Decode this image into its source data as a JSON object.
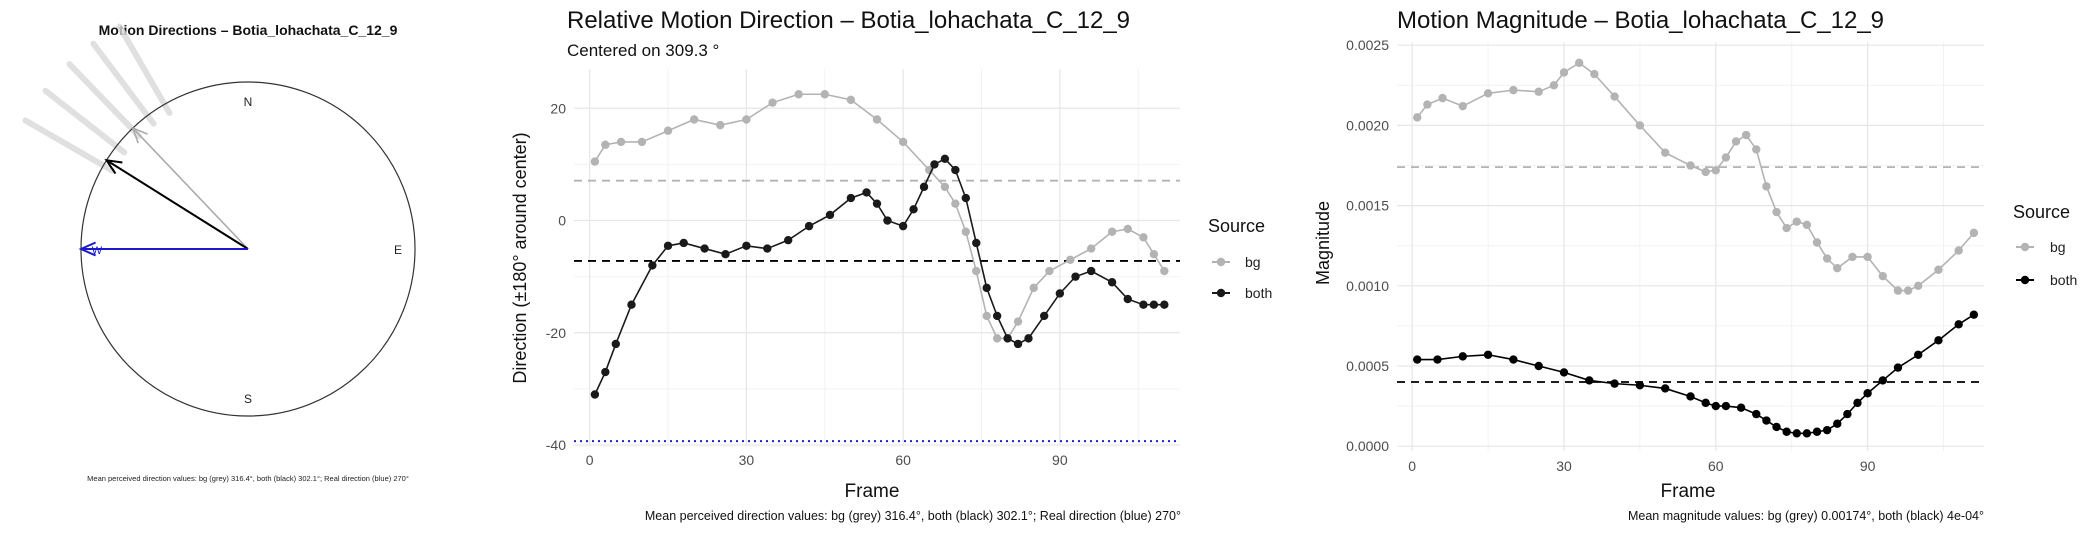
{
  "chart_data": [
    {
      "type": "compass",
      "title": "Motion Directions – Botia_lohachata_C_12_9",
      "cardinals": [
        "N",
        "E",
        "S",
        "W"
      ],
      "mean_arrows": [
        {
          "source": "bg",
          "direction_deg": 316.4,
          "color": "#aaaaaa"
        },
        {
          "source": "both",
          "direction_deg": 302.1,
          "color": "#000000"
        },
        {
          "source": "real",
          "direction_deg": 270,
          "color": "#1a1acc"
        }
      ],
      "faint_rays_deg": [
        300,
        308,
        316,
        323,
        330
      ],
      "caption": "Mean perceived direction values: bg (grey) 316.4°, both (black) 302.1°; Real direction (blue) 270°"
    },
    {
      "type": "line",
      "title": "Relative Motion Direction – Botia_lohachata_C_12_9",
      "subtitle": "Centered on  309.3 °",
      "xlabel": "Frame",
      "ylabel": "Direction (±180° around center)",
      "xlim": [
        -3,
        113
      ],
      "ylim": [
        -40,
        27
      ],
      "xticks": [
        0,
        30,
        60,
        90
      ],
      "yticks": [
        -40,
        -20,
        0,
        20
      ],
      "legend": {
        "title": "Source",
        "items": [
          "bg",
          "both"
        ],
        "placement": "right"
      },
      "series": [
        {
          "name": "bg",
          "color": "#b3b3b3",
          "x": [
            1,
            3,
            6,
            10,
            15,
            20,
            25,
            30,
            35,
            40,
            45,
            50,
            55,
            60,
            65,
            68,
            70,
            72,
            74,
            76,
            78,
            80,
            82,
            85,
            88,
            92,
            96,
            100,
            103,
            106,
            108,
            110
          ],
          "y": [
            10.5,
            13.5,
            14,
            14,
            16,
            18,
            17,
            18,
            21,
            22.5,
            22.5,
            21.5,
            18,
            14,
            9,
            6,
            3,
            -2,
            -9,
            -17,
            -21,
            -21,
            -18,
            -12,
            -9,
            -7,
            -5,
            -2,
            -1.5,
            -3,
            -6,
            -9
          ]
        },
        {
          "name": "both",
          "color": "#1a1a1a",
          "x": [
            1,
            3,
            5,
            8,
            12,
            15,
            18,
            22,
            26,
            30,
            34,
            38,
            42,
            46,
            50,
            53,
            55,
            57,
            60,
            62,
            64,
            66,
            68,
            70,
            72,
            74,
            76,
            78,
            80,
            82,
            84,
            87,
            90,
            93,
            96,
            100,
            103,
            106,
            108,
            110
          ],
          "y": [
            -31,
            -27,
            -22,
            -15,
            -8,
            -4.5,
            -4,
            -5,
            -6,
            -4.5,
            -5,
            -3.5,
            -1,
            1,
            4,
            5,
            3,
            0,
            -1,
            2,
            6,
            10,
            11,
            9,
            4,
            -4,
            -12,
            -17,
            -21,
            -22,
            -21,
            -17,
            -13,
            -10,
            -9,
            -11,
            -14,
            -15,
            -15,
            -15
          ]
        }
      ],
      "hlines": [
        {
          "label": "bg mean",
          "y": 7.1,
          "color": "#b3b3b3",
          "style": "dashed"
        },
        {
          "label": "both mean",
          "y": -7.2,
          "color": "#000000",
          "style": "dashed"
        },
        {
          "label": "real",
          "y": -39.3,
          "color": "#2222cc",
          "style": "dotted"
        }
      ],
      "caption": "Mean perceived direction values: bg (grey) 316.4°, both (black) 302.1°; Real direction (blue) 270°"
    },
    {
      "type": "line",
      "title": "Motion Magnitude – Botia_lohachata_C_12_9",
      "xlabel": "Frame",
      "ylabel": "Magnitude",
      "xlim": [
        -3,
        113
      ],
      "ylim": [
        -3e-05,
        0.00252
      ],
      "xticks": [
        0,
        30,
        60,
        90
      ],
      "yticks": [
        0.0,
        0.0005,
        0.001,
        0.0015,
        0.002,
        0.0025
      ],
      "ytick_labels": [
        "0.0000",
        "0.0005",
        "0.0010",
        "0.0015",
        "0.0020",
        "0.0025"
      ],
      "legend": {
        "title": "Source",
        "items": [
          "bg",
          "both"
        ],
        "placement": "right"
      },
      "series": [
        {
          "name": "bg",
          "color": "#b3b3b3",
          "x": [
            1,
            3,
            6,
            10,
            15,
            20,
            25,
            28,
            30,
            33,
            36,
            40,
            45,
            50,
            55,
            58,
            60,
            62,
            64,
            66,
            68,
            70,
            72,
            74,
            76,
            78,
            80,
            82,
            84,
            87,
            90,
            93,
            96,
            98,
            100,
            104,
            108,
            111
          ],
          "y": [
            0.00205,
            0.00213,
            0.00217,
            0.00212,
            0.0022,
            0.00222,
            0.00221,
            0.00225,
            0.00233,
            0.00239,
            0.00232,
            0.00218,
            0.002,
            0.00183,
            0.00175,
            0.00171,
            0.00172,
            0.0018,
            0.0019,
            0.00194,
            0.00185,
            0.00162,
            0.00146,
            0.00136,
            0.0014,
            0.00138,
            0.00127,
            0.00117,
            0.00111,
            0.00118,
            0.00118,
            0.00106,
            0.00097,
            0.00097,
            0.001,
            0.0011,
            0.00122,
            0.00133
          ]
        },
        {
          "name": "both",
          "color": "#000000",
          "x": [
            1,
            5,
            10,
            15,
            20,
            25,
            30,
            35,
            40,
            45,
            50,
            55,
            58,
            60,
            62,
            65,
            68,
            70,
            72,
            74,
            76,
            78,
            80,
            82,
            84,
            86,
            88,
            90,
            93,
            96,
            100,
            104,
            108,
            111
          ],
          "y": [
            0.00054,
            0.00054,
            0.00056,
            0.00057,
            0.00054,
            0.0005,
            0.00046,
            0.00041,
            0.00039,
            0.00038,
            0.00036,
            0.00031,
            0.00027,
            0.00025,
            0.00025,
            0.00024,
            0.0002,
            0.00016,
            0.00012,
            9e-05,
            8e-05,
            8e-05,
            9e-05,
            0.0001,
            0.00014,
            0.0002,
            0.00027,
            0.00033,
            0.00041,
            0.00049,
            0.00057,
            0.00066,
            0.00076,
            0.00082
          ]
        }
      ],
      "hlines": [
        {
          "label": "bg mean",
          "y": 0.00174,
          "color": "#b3b3b3",
          "style": "dashed"
        },
        {
          "label": "both mean",
          "y": 0.0004,
          "color": "#000000",
          "style": "dashed"
        }
      ],
      "caption": "Mean magnitude values: bg (grey) 0.00174°, both (black) 4e-04°"
    }
  ]
}
